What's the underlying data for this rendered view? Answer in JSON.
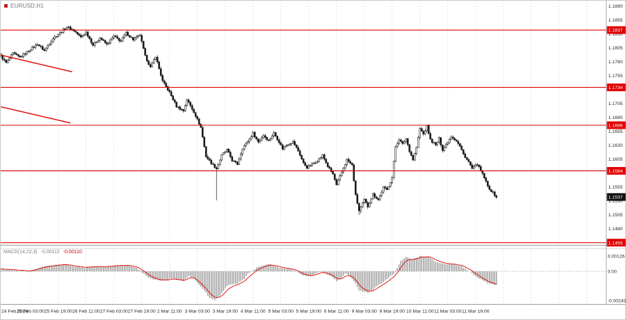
{
  "window": {
    "symbol_label": "EURUSD,H1"
  },
  "colors": {
    "level_red": "#e00000",
    "trend_red": "#e00000",
    "candle": "#1a1a1a",
    "candle_up_fill": "#ffffff",
    "grid": "#d4d4d4",
    "histogram": "#a0a0a0",
    "signal_red": "#e00000",
    "price_marker_bg": "#111111",
    "axis_text": "#2a2a2a",
    "separator": "#9a9a9a"
  },
  "price_axis": {
    "ticks": [
      "1.1880",
      "1.1855",
      "1.1830",
      "1.1805",
      "1.1780",
      "1.1755",
      "1.1730",
      "1.1705",
      "1.1680",
      "1.1655",
      "1.1630",
      "1.1605",
      "1.1580",
      "1.1555",
      "1.1530",
      "1.1505",
      "1.1480",
      "1.1455"
    ]
  },
  "time_axis": {
    "labels": [
      "24 Feb 2026",
      "25 Feb 03:00",
      "25 Feb 19:00",
      "26 Feb 11:00",
      "27 Feb 03:00",
      "27 Feb 19:00",
      "2 Mar 11:00",
      "3 Mar 03:00",
      "3 Mar 19:00",
      "4 Mar 11:00",
      "5 Mar 03:00",
      "5 Mar 19:00",
      "6 Mar 11:00",
      "9 Mar 03:00",
      "9 Mar 19:00",
      "10 Mar 11:00",
      "11 Mar 03:00",
      "11 Mar 19:00"
    ]
  },
  "chart_data": {
    "type": "candlestick",
    "title": "EURUSD,H1",
    "price_range": [
      1.1451,
      1.1891
    ],
    "bars_total": 286,
    "levels": [
      1.1837,
      1.1734,
      1.1666,
      1.1584,
      1.1455
    ],
    "current_price": 1.1537,
    "trend_lines": [
      {
        "from": [
          0,
          1.1792
        ],
        "to": [
          41,
          1.1762
        ]
      },
      {
        "from": [
          0,
          1.1699
        ],
        "to": [
          40,
          1.167
        ]
      }
    ],
    "close_waypoints": [
      [
        0,
        1.179
      ],
      [
        3,
        1.1778
      ],
      [
        7,
        1.1795
      ],
      [
        11,
        1.1788
      ],
      [
        16,
        1.18
      ],
      [
        21,
        1.1812
      ],
      [
        25,
        1.18
      ],
      [
        30,
        1.1822
      ],
      [
        34,
        1.1832
      ],
      [
        38,
        1.1843
      ],
      [
        42,
        1.1836
      ],
      [
        46,
        1.1824
      ],
      [
        49,
        1.1833
      ],
      [
        53,
        1.181
      ],
      [
        57,
        1.1823
      ],
      [
        61,
        1.1811
      ],
      [
        65,
        1.1826
      ],
      [
        69,
        1.1817
      ],
      [
        72,
        1.1832
      ],
      [
        76,
        1.182
      ],
      [
        80,
        1.1828
      ],
      [
        83,
        1.179
      ],
      [
        86,
        1.177
      ],
      [
        89,
        1.179
      ],
      [
        93,
        1.1745
      ],
      [
        97,
        1.1725
      ],
      [
        101,
        1.17
      ],
      [
        105,
        1.1692
      ],
      [
        107,
        1.1712
      ],
      [
        111,
        1.169
      ],
      [
        115,
        1.1662
      ],
      [
        118,
        1.161
      ],
      [
        121,
        1.1598
      ],
      [
        124,
        1.1588
      ],
      [
        127,
        1.1612
      ],
      [
        130,
        1.1622
      ],
      [
        133,
        1.1603
      ],
      [
        136,
        1.1596
      ],
      [
        139,
        1.1625
      ],
      [
        143,
        1.1641
      ],
      [
        145,
        1.1652
      ],
      [
        148,
        1.1636
      ],
      [
        151,
        1.1648
      ],
      [
        154,
        1.1638
      ],
      [
        157,
        1.1652
      ],
      [
        160,
        1.1636
      ],
      [
        162,
        1.1624
      ],
      [
        165,
        1.1632
      ],
      [
        168,
        1.1636
      ],
      [
        171,
        1.162
      ],
      [
        174,
        1.1598
      ],
      [
        176,
        1.159
      ],
      [
        179,
        1.1596
      ],
      [
        182,
        1.1602
      ],
      [
        185,
        1.1612
      ],
      [
        188,
        1.1592
      ],
      [
        191,
        1.1578
      ],
      [
        193,
        1.1558
      ],
      [
        196,
        1.1582
      ],
      [
        199,
        1.1604
      ],
      [
        202,
        1.1594
      ],
      [
        204,
        1.154
      ],
      [
        206,
        1.1512
      ],
      [
        209,
        1.1532
      ],
      [
        211,
        1.152
      ],
      [
        214,
        1.1542
      ],
      [
        217,
        1.1532
      ],
      [
        220,
        1.1554
      ],
      [
        222,
        1.155
      ],
      [
        225,
        1.1572
      ],
      [
        227,
        1.1628
      ],
      [
        229,
        1.1641
      ],
      [
        231,
        1.1632
      ],
      [
        233,
        1.1642
      ],
      [
        235,
        1.162
      ],
      [
        237,
        1.1604
      ],
      [
        239,
        1.1626
      ],
      [
        241,
        1.166
      ],
      [
        243,
        1.165
      ],
      [
        245,
        1.1664
      ],
      [
        247,
        1.164
      ],
      [
        250,
        1.163
      ],
      [
        252,
        1.1642
      ],
      [
        254,
        1.1622
      ],
      [
        257,
        1.1636
      ],
      [
        259,
        1.1646
      ],
      [
        262,
        1.1638
      ],
      [
        264,
        1.1628
      ],
      [
        266,
        1.1614
      ],
      [
        269,
        1.16
      ],
      [
        271,
        1.1588
      ],
      [
        274,
        1.1596
      ],
      [
        276,
        1.1584
      ],
      [
        278,
        1.1572
      ],
      [
        280,
        1.1556
      ],
      [
        282,
        1.1548
      ],
      [
        285,
        1.1537
      ]
    ],
    "spike_lows": [
      [
        124,
        1.1531
      ],
      [
        206,
        1.1505
      ],
      [
        207,
        1.1507
      ]
    ],
    "macd": {
      "label": "MACD(14,22,3)",
      "value": "-0.00112",
      "signal_value": "-0.00110",
      "range": [
        -0.00271,
        0.00185
      ],
      "axis": [
        {
          "value": 0.00126,
          "label": "0.00126"
        },
        {
          "value": 0,
          "label": "0.00"
        },
        {
          "value": -0.00243,
          "label": "-0.00243"
        }
      ],
      "waypoints": [
        [
          0,
          0.0002
        ],
        [
          8,
          0.0001
        ],
        [
          16,
          0.0
        ],
        [
          24,
          0.0004
        ],
        [
          30,
          0.0005
        ],
        [
          36,
          0.0006
        ],
        [
          42,
          0.0004
        ],
        [
          48,
          0.0003
        ],
        [
          54,
          0.0004
        ],
        [
          60,
          0.0004
        ],
        [
          66,
          0.0005
        ],
        [
          72,
          0.0005
        ],
        [
          78,
          0.0003
        ],
        [
          82,
          -0.0002
        ],
        [
          86,
          -0.0006
        ],
        [
          92,
          -0.0008
        ],
        [
          98,
          -0.0006
        ],
        [
          102,
          -0.0007
        ],
        [
          105,
          -0.0008
        ],
        [
          108,
          -0.0004
        ],
        [
          111,
          -0.0006
        ],
        [
          113,
          -0.001
        ],
        [
          117,
          -0.0016
        ],
        [
          120,
          -0.0022
        ],
        [
          123,
          -0.0024
        ],
        [
          126,
          -0.002
        ],
        [
          130,
          -0.0012
        ],
        [
          136,
          -0.001
        ],
        [
          140,
          -0.0006
        ],
        [
          142,
          -0.0002
        ],
        [
          145,
          0.0001
        ],
        [
          148,
          0.0004
        ],
        [
          152,
          0.0005
        ],
        [
          154,
          0.0006
        ],
        [
          158,
          0.0004
        ],
        [
          160,
          0.0003
        ],
        [
          164,
          0.0002
        ],
        [
          166,
          0.0002
        ],
        [
          170,
          0.0
        ],
        [
          172,
          -0.0002
        ],
        [
          175,
          -0.0004
        ],
        [
          178,
          -0.0004
        ],
        [
          181,
          -0.0002
        ],
        [
          184,
          0.0
        ],
        [
          187,
          -0.0002
        ],
        [
          190,
          -0.0004
        ],
        [
          193,
          -0.0008
        ],
        [
          196,
          -0.0006
        ],
        [
          198,
          -0.0002
        ],
        [
          200,
          -0.0003
        ],
        [
          202,
          -0.0006
        ],
        [
          204,
          -0.001
        ],
        [
          206,
          -0.0016
        ],
        [
          209,
          -0.0017
        ],
        [
          211,
          -0.0018
        ],
        [
          214,
          -0.0015
        ],
        [
          216,
          -0.0012
        ],
        [
          219,
          -0.001
        ],
        [
          221,
          -0.0008
        ],
        [
          224,
          -0.0004
        ],
        [
          226,
          -0.0002
        ],
        [
          228,
          0.0003
        ],
        [
          230,
          0.0009
        ],
        [
          233,
          0.0012
        ],
        [
          235,
          0.0011
        ],
        [
          237,
          0.001
        ],
        [
          239,
          0.0011
        ],
        [
          241,
          0.00126
        ],
        [
          243,
          0.0012
        ],
        [
          245,
          0.00126
        ],
        [
          248,
          0.001
        ],
        [
          250,
          0.0008
        ],
        [
          253,
          0.0007
        ],
        [
          255,
          0.0006
        ],
        [
          258,
          0.0006
        ],
        [
          260,
          0.0006
        ],
        [
          263,
          0.0005
        ],
        [
          265,
          0.0004
        ],
        [
          268,
          0.0001
        ],
        [
          270,
          0.0
        ],
        [
          272,
          -0.0003
        ],
        [
          275,
          -0.0006
        ],
        [
          278,
          -0.0008
        ],
        [
          280,
          -0.001
        ],
        [
          283,
          -0.0011
        ],
        [
          285,
          -0.00112
        ]
      ]
    }
  }
}
